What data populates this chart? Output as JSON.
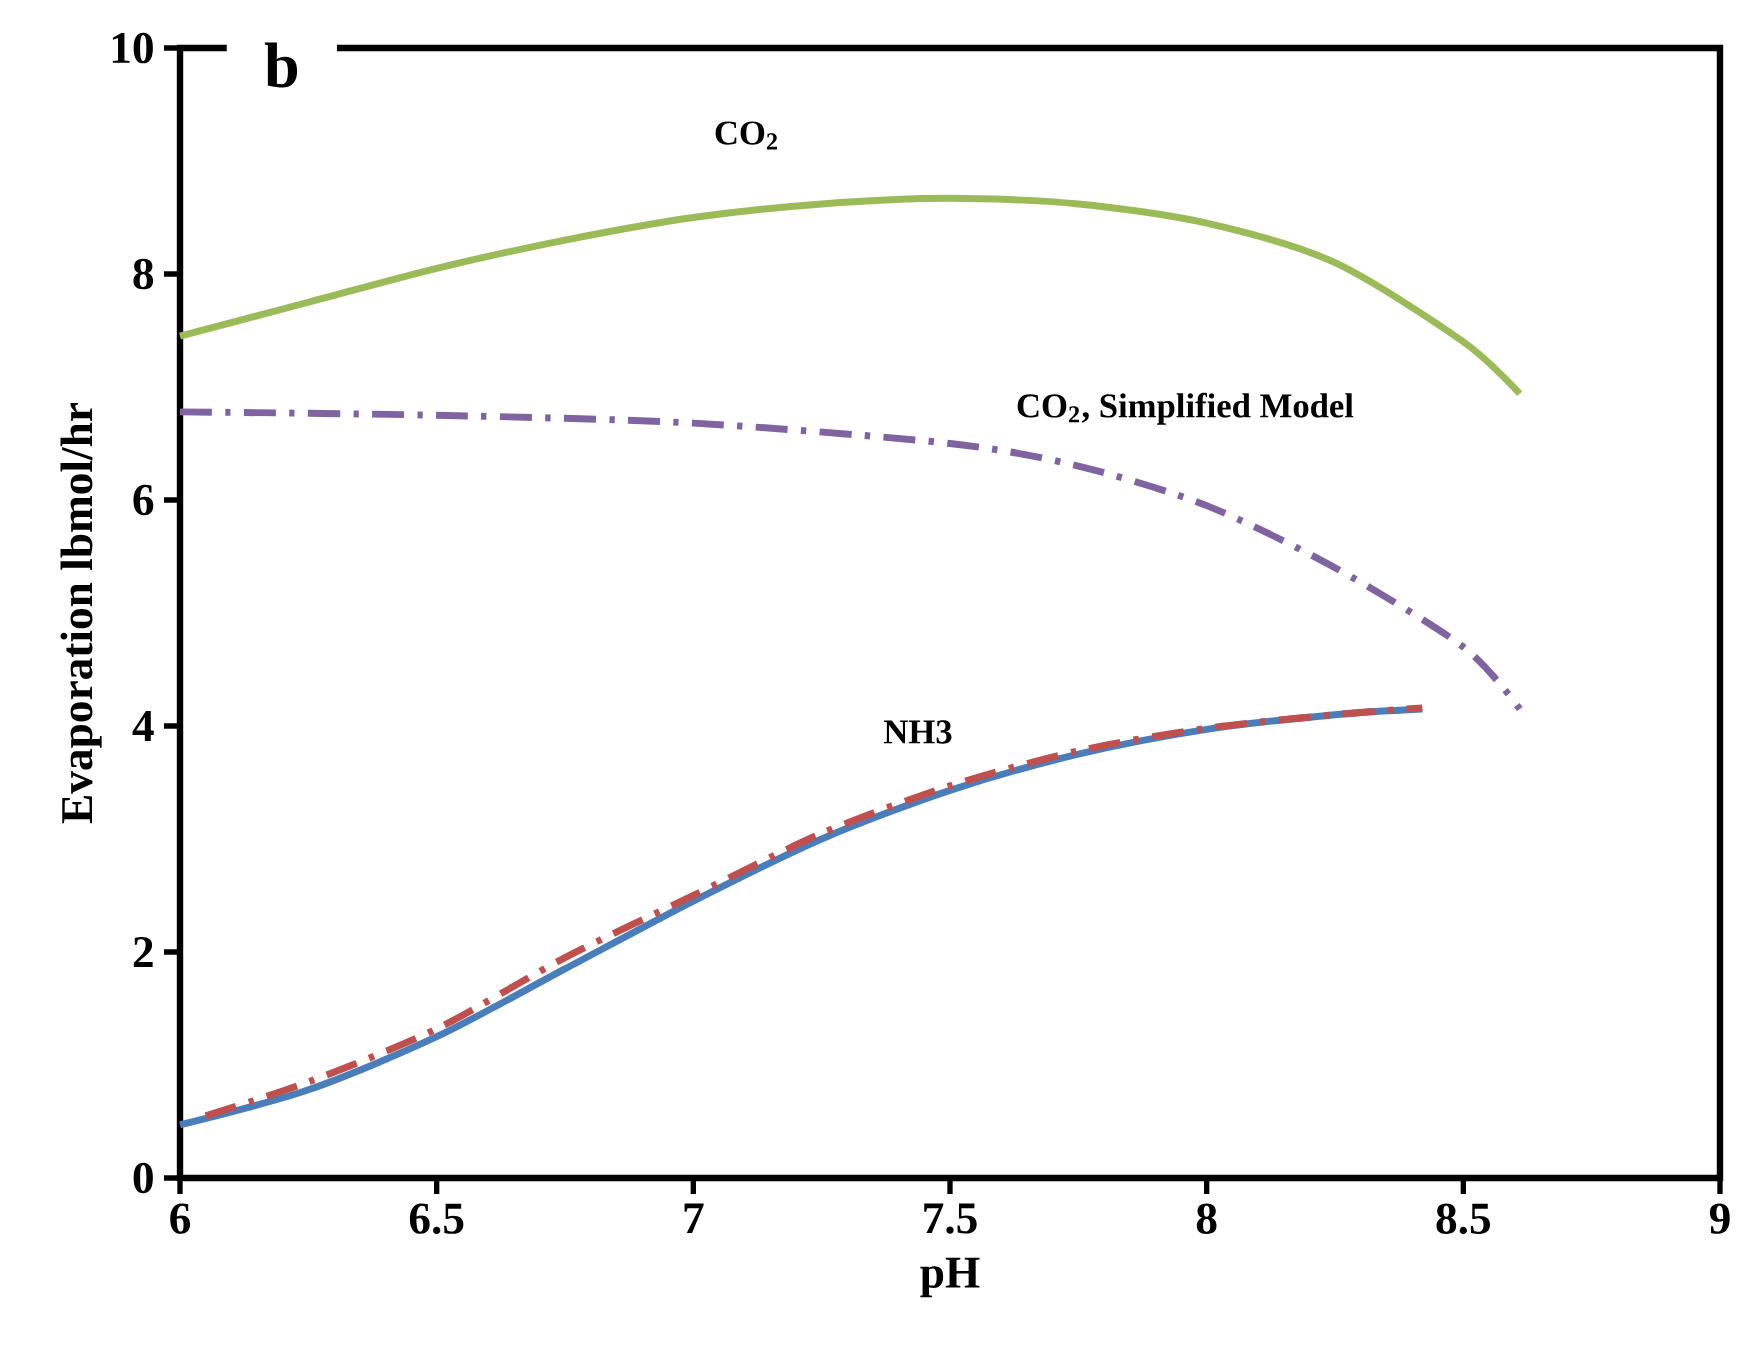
{
  "chart_data": {
    "type": "line",
    "xlabel": "pH",
    "ylabel": "Evaporation lbmol/hr",
    "xlim": [
      6,
      9
    ],
    "ylim": [
      0,
      10
    ],
    "xticks": [
      6,
      6.5,
      7,
      7.5,
      8,
      8.5,
      9
    ],
    "yticks": [
      0,
      2,
      4,
      6,
      8,
      10
    ],
    "grid": false,
    "legend": false,
    "marker": "none",
    "series": [
      {
        "name": "CO$_{2}$",
        "color": "#9bbb59",
        "line_style": "solid",
        "x": [
          6,
          6.25,
          6.5,
          6.75,
          7,
          7.25,
          7.5,
          7.75,
          8,
          8.25,
          8.5,
          8.61
        ],
        "values": [
          7.45,
          7.75,
          8.05,
          8.3,
          8.5,
          8.62,
          8.67,
          8.62,
          8.45,
          8.1,
          7.4,
          6.94
        ]
      },
      {
        "name": "CO$_{2}$, Simplified Model",
        "color": "#8064a2",
        "line_style": "dashdot",
        "x": [
          6,
          6.5,
          7,
          7.5,
          7.75,
          8,
          8.25,
          8.5,
          8.61
        ],
        "values": [
          6.78,
          6.75,
          6.68,
          6.5,
          6.3,
          5.95,
          5.4,
          4.7,
          4.15
        ]
      },
      {
        "name": "NH3",
        "color": "#4a7ebb",
        "line_style": "solid",
        "x": [
          6,
          6.25,
          6.5,
          6.75,
          7,
          7.25,
          7.5,
          7.75,
          8,
          8.25,
          8.42
        ],
        "values": [
          0.47,
          0.78,
          1.25,
          1.85,
          2.45,
          3.0,
          3.43,
          3.75,
          3.97,
          4.1,
          4.15
        ]
      },
      {
        "color": "#c0504d",
        "line_style": "dashdot",
        "x": [
          6.05,
          6.25,
          6.5,
          6.75,
          7,
          7.25,
          7.5,
          7.75,
          8,
          8.25,
          8.42
        ],
        "values": [
          0.55,
          0.85,
          1.32,
          1.95,
          2.5,
          3.05,
          3.47,
          3.78,
          3.98,
          4.1,
          4.16
        ]
      }
    ],
    "annotations": [
      "b"
    ]
  }
}
